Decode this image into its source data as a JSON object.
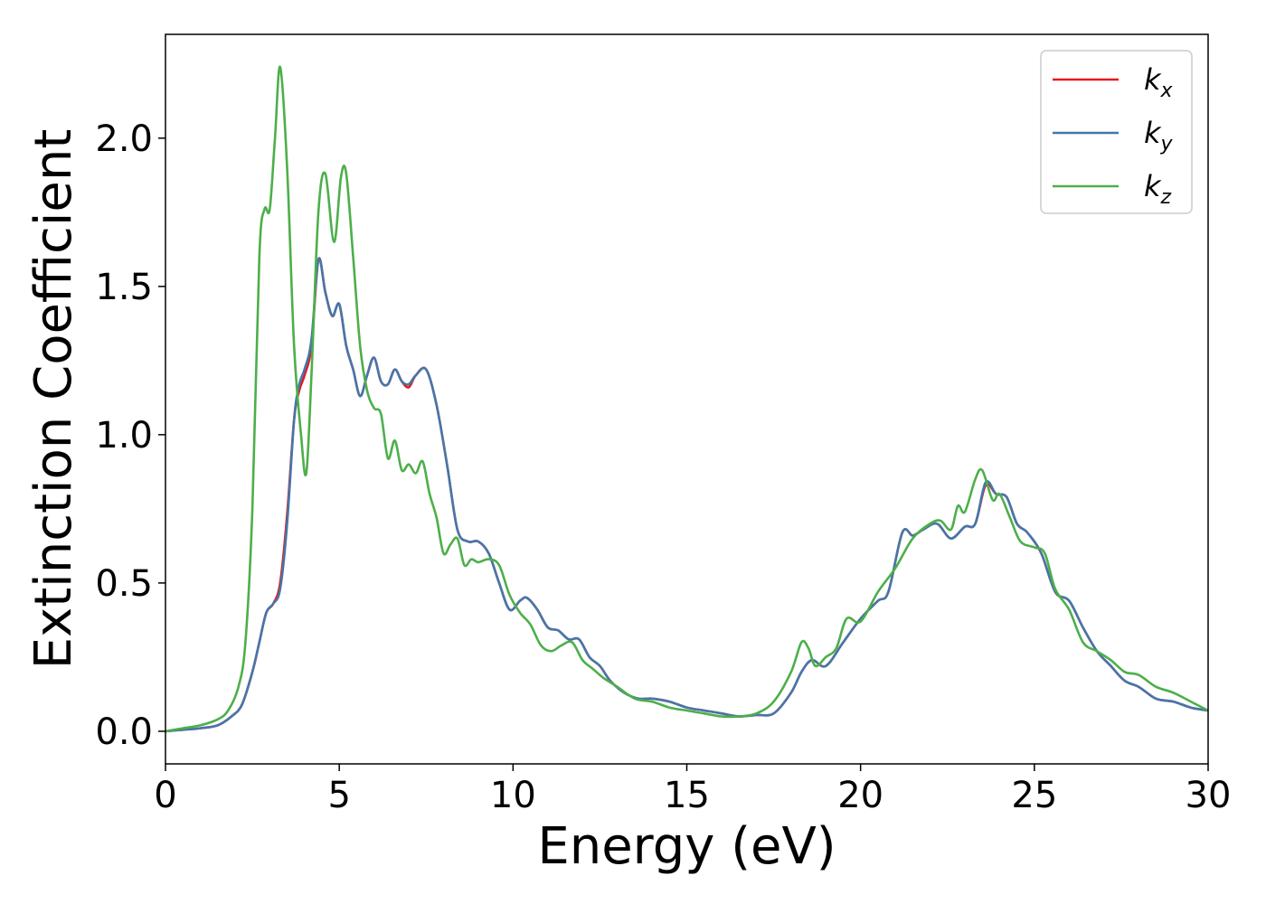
{
  "chart_data": {
    "type": "line",
    "xlabel": "Energy (eV)",
    "ylabel": "Extinction Coefficient",
    "xlim": [
      0,
      30
    ],
    "ylim": [
      -0.11,
      2.35
    ],
    "xticks": [
      0,
      5,
      10,
      15,
      20,
      25,
      30
    ],
    "xtick_labels": [
      "0",
      "5",
      "10",
      "15",
      "20",
      "25",
      "30"
    ],
    "yticks": [
      0.0,
      0.5,
      1.0,
      1.5,
      2.0
    ],
    "ytick_labels": [
      "0.0",
      "0.5",
      "1.0",
      "1.5",
      "2.0"
    ],
    "grid": false,
    "legend_position": "top-right",
    "series": [
      {
        "name": "kx",
        "label_main": "k",
        "label_sub": "x",
        "color": "#e41a1c",
        "x": [
          0,
          0.5,
          1,
          1.5,
          1.9,
          2.2,
          2.5,
          2.7,
          2.9,
          3.1,
          3.3,
          3.5,
          3.7,
          3.85,
          4,
          4.2,
          4.4,
          4.6,
          4.8,
          5,
          5.2,
          5.4,
          5.6,
          5.8,
          6,
          6.2,
          6.4,
          6.6,
          6.8,
          7,
          7.2,
          7.5,
          7.8,
          8.1,
          8.4,
          8.7,
          9,
          9.3,
          9.6,
          9.9,
          10.2,
          10.4,
          10.7,
          11,
          11.3,
          11.6,
          11.9,
          12.2,
          12.5,
          12.8,
          13.2,
          13.6,
          14,
          14.5,
          15,
          15.5,
          16,
          16.5,
          17,
          17.5,
          18,
          18.3,
          18.6,
          19,
          19.5,
          20,
          20.5,
          20.8,
          21.2,
          21.5,
          21.8,
          22.2,
          22.6,
          23,
          23.3,
          23.6,
          23.9,
          24.2,
          24.5,
          24.8,
          25.2,
          25.6,
          26,
          26.4,
          26.8,
          27.2,
          27.6,
          28,
          28.5,
          29,
          29.5,
          30
        ],
        "y": [
          0,
          0.005,
          0.01,
          0.02,
          0.05,
          0.09,
          0.2,
          0.3,
          0.4,
          0.43,
          0.5,
          0.73,
          1.05,
          1.15,
          1.2,
          1.3,
          1.59,
          1.48,
          1.4,
          1.44,
          1.3,
          1.22,
          1.13,
          1.2,
          1.26,
          1.18,
          1.17,
          1.22,
          1.18,
          1.16,
          1.2,
          1.22,
          1.1,
          0.9,
          0.68,
          0.64,
          0.64,
          0.6,
          0.5,
          0.41,
          0.44,
          0.45,
          0.41,
          0.35,
          0.34,
          0.31,
          0.31,
          0.25,
          0.22,
          0.17,
          0.13,
          0.11,
          0.11,
          0.1,
          0.08,
          0.07,
          0.06,
          0.05,
          0.055,
          0.06,
          0.13,
          0.2,
          0.24,
          0.22,
          0.3,
          0.38,
          0.44,
          0.47,
          0.67,
          0.66,
          0.68,
          0.7,
          0.65,
          0.69,
          0.7,
          0.83,
          0.8,
          0.79,
          0.7,
          0.67,
          0.6,
          0.47,
          0.44,
          0.35,
          0.27,
          0.22,
          0.17,
          0.15,
          0.11,
          0.1,
          0.08,
          0.07
        ]
      },
      {
        "name": "ky",
        "label_main": "k",
        "label_sub": "y",
        "color": "#4477aa",
        "x": [
          0,
          0.5,
          1,
          1.5,
          1.9,
          2.2,
          2.5,
          2.7,
          2.9,
          3.1,
          3.3,
          3.5,
          3.7,
          3.85,
          4,
          4.2,
          4.4,
          4.6,
          4.8,
          5,
          5.2,
          5.4,
          5.6,
          5.8,
          6,
          6.2,
          6.4,
          6.6,
          6.8,
          7,
          7.2,
          7.5,
          7.8,
          8.1,
          8.4,
          8.7,
          9,
          9.3,
          9.6,
          9.9,
          10.2,
          10.4,
          10.7,
          11,
          11.3,
          11.6,
          11.9,
          12.2,
          12.5,
          12.8,
          13.2,
          13.6,
          14,
          14.5,
          15,
          15.5,
          16,
          16.5,
          17,
          17.5,
          18,
          18.3,
          18.6,
          19,
          19.5,
          20,
          20.5,
          20.8,
          21.2,
          21.5,
          21.8,
          22.2,
          22.6,
          23,
          23.3,
          23.6,
          23.9,
          24.2,
          24.5,
          24.8,
          25.2,
          25.6,
          26,
          26.4,
          26.8,
          27.2,
          27.6,
          28,
          28.5,
          29,
          29.5,
          30
        ],
        "y": [
          0,
          0.005,
          0.01,
          0.02,
          0.05,
          0.09,
          0.2,
          0.3,
          0.4,
          0.43,
          0.48,
          0.7,
          1.05,
          1.17,
          1.22,
          1.32,
          1.59,
          1.48,
          1.4,
          1.44,
          1.3,
          1.22,
          1.13,
          1.2,
          1.26,
          1.18,
          1.17,
          1.22,
          1.18,
          1.17,
          1.2,
          1.22,
          1.1,
          0.9,
          0.68,
          0.64,
          0.64,
          0.6,
          0.5,
          0.41,
          0.44,
          0.45,
          0.41,
          0.35,
          0.34,
          0.31,
          0.31,
          0.25,
          0.22,
          0.17,
          0.13,
          0.11,
          0.11,
          0.1,
          0.08,
          0.07,
          0.06,
          0.05,
          0.055,
          0.06,
          0.13,
          0.2,
          0.24,
          0.22,
          0.3,
          0.38,
          0.44,
          0.47,
          0.67,
          0.66,
          0.68,
          0.7,
          0.65,
          0.69,
          0.7,
          0.84,
          0.8,
          0.79,
          0.7,
          0.67,
          0.6,
          0.47,
          0.44,
          0.35,
          0.27,
          0.22,
          0.17,
          0.15,
          0.11,
          0.1,
          0.08,
          0.07
        ]
      },
      {
        "name": "kz",
        "label_main": "k",
        "label_sub": "z",
        "color": "#4daf4a",
        "x": [
          0,
          0.5,
          1,
          1.5,
          1.8,
          2.1,
          2.3,
          2.5,
          2.7,
          2.85,
          3,
          3.15,
          3.3,
          3.5,
          3.7,
          3.9,
          4.05,
          4.2,
          4.4,
          4.6,
          4.85,
          5.05,
          5.2,
          5.4,
          5.6,
          5.8,
          6,
          6.2,
          6.4,
          6.6,
          6.8,
          7,
          7.2,
          7.4,
          7.6,
          7.8,
          8,
          8.2,
          8.4,
          8.6,
          8.8,
          9,
          9.3,
          9.6,
          9.9,
          10.2,
          10.5,
          10.8,
          11.1,
          11.4,
          11.7,
          12,
          12.3,
          12.6,
          13,
          13.5,
          14,
          14.5,
          15,
          15.5,
          16,
          16.5,
          17,
          17.5,
          18,
          18.3,
          18.5,
          18.7,
          19,
          19.3,
          19.6,
          20,
          20.5,
          21,
          21.5,
          22,
          22.3,
          22.6,
          22.8,
          23,
          23.3,
          23.5,
          23.8,
          24,
          24.3,
          24.6,
          25,
          25.3,
          25.6,
          26,
          26.4,
          26.8,
          27.2,
          27.6,
          28,
          28.5,
          29,
          29.5,
          30
        ],
        "y": [
          0,
          0.01,
          0.02,
          0.04,
          0.07,
          0.15,
          0.3,
          0.75,
          1.6,
          1.76,
          1.76,
          2.0,
          2.24,
          1.9,
          1.3,
          1.0,
          0.87,
          1.2,
          1.75,
          1.88,
          1.65,
          1.87,
          1.88,
          1.6,
          1.3,
          1.15,
          1.09,
          1.07,
          0.92,
          0.98,
          0.88,
          0.9,
          0.87,
          0.91,
          0.8,
          0.72,
          0.6,
          0.63,
          0.65,
          0.56,
          0.58,
          0.57,
          0.58,
          0.56,
          0.46,
          0.4,
          0.36,
          0.29,
          0.27,
          0.29,
          0.3,
          0.24,
          0.21,
          0.18,
          0.15,
          0.11,
          0.1,
          0.08,
          0.07,
          0.06,
          0.05,
          0.05,
          0.06,
          0.1,
          0.2,
          0.3,
          0.28,
          0.22,
          0.25,
          0.28,
          0.38,
          0.37,
          0.47,
          0.55,
          0.65,
          0.7,
          0.71,
          0.68,
          0.76,
          0.74,
          0.85,
          0.88,
          0.78,
          0.8,
          0.72,
          0.64,
          0.62,
          0.6,
          0.48,
          0.41,
          0.3,
          0.27,
          0.24,
          0.2,
          0.19,
          0.15,
          0.13,
          0.1,
          0.07
        ]
      }
    ]
  }
}
